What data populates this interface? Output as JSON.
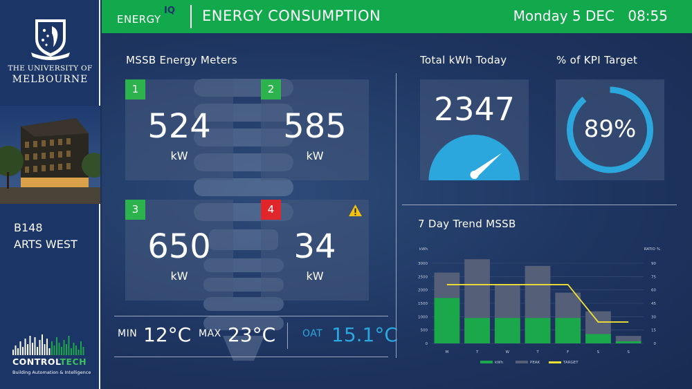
{
  "sidebar": {
    "university_line1": "THE UNIVERSITY OF",
    "university_line2": "MELBOURNE",
    "building_code": "B148",
    "building_name": "ARTS WEST",
    "company_part1": "CONTROL",
    "company_part2": "TECH",
    "company_tagline": "Building Automation & Intelligence"
  },
  "header": {
    "brand": "ENERGY",
    "brand_sup": "IQ",
    "title": "ENERGY CONSUMPTION",
    "date": "Monday 5 DEC",
    "time": "08:55"
  },
  "meters": {
    "title": "MSSB Energy Meters",
    "items": [
      {
        "number": "1",
        "value": "524",
        "unit": "kW",
        "status": "normal"
      },
      {
        "number": "2",
        "value": "585",
        "unit": "kW",
        "status": "normal"
      },
      {
        "number": "3",
        "value": "650",
        "unit": "kW",
        "status": "normal"
      },
      {
        "number": "4",
        "value": "34",
        "unit": "kW",
        "status": "warning"
      }
    ]
  },
  "temperature": {
    "min_label": "MIN",
    "min_value": "12°C",
    "max_label": "MAX",
    "max_value": "23°C",
    "oat_label": "OAT",
    "oat_value": "15.1°C"
  },
  "kwh_today": {
    "title": "Total kWh Today",
    "value": "2347",
    "gauge_level": 0.75
  },
  "kpi": {
    "title": "% of KPI Target",
    "value": "89%",
    "fraction": 0.89
  },
  "trend": {
    "title": "7 Day Trend  MSSB"
  },
  "colors": {
    "header_green": "#12a94c",
    "kwh_green": "#1aa84a",
    "peak_gray": "#565f78",
    "target_yellow": "#f2e033",
    "accent_blue": "#2ba7de",
    "warning_red": "#e0252b",
    "warning_yellow": "#f4c20d"
  },
  "icons": {
    "crest": "university-crest-icon",
    "warning": "warning-triangle-icon",
    "bars": "equalizer-bars-icon"
  },
  "chart_data": {
    "type": "bar",
    "title": "7 Day Trend  MSSB",
    "categories": [
      "M",
      "T",
      "W",
      "T",
      "F",
      "S",
      "S"
    ],
    "ylabel": "kWh",
    "y2label": "RATIO %",
    "ylim": [
      0,
      3000
    ],
    "y2lim": [
      0,
      90
    ],
    "yticks": [
      0,
      500,
      1000,
      1500,
      2000,
      2500,
      3000
    ],
    "y2ticks": [
      0,
      15,
      30,
      45,
      60,
      75,
      90
    ],
    "grid": true,
    "legend_position": "bottom",
    "series": [
      {
        "name": "kWh",
        "kind": "bar",
        "values": [
          1700,
          950,
          950,
          950,
          950,
          350,
          80
        ]
      },
      {
        "name": "PEAK",
        "kind": "bar",
        "values": [
          2650,
          3150,
          2200,
          2900,
          1900,
          1200,
          280
        ]
      },
      {
        "name": "TARGET",
        "kind": "line",
        "axis": "y2",
        "values": [
          66,
          66,
          66,
          66,
          66,
          24,
          24
        ]
      }
    ]
  }
}
